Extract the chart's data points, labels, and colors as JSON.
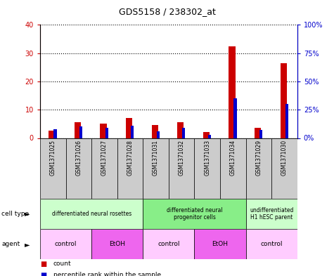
{
  "title": "GDS5158 / 238302_at",
  "samples": [
    "GSM1371025",
    "GSM1371026",
    "GSM1371027",
    "GSM1371028",
    "GSM1371031",
    "GSM1371032",
    "GSM1371033",
    "GSM1371034",
    "GSM1371029",
    "GSM1371030"
  ],
  "count_values": [
    2.5,
    5.5,
    5.0,
    7.0,
    4.5,
    5.5,
    2.0,
    32.5,
    3.5,
    26.5
  ],
  "percentile_values": [
    8,
    10,
    9,
    11,
    6,
    9,
    3,
    35,
    7,
    30
  ],
  "ylim_left": [
    0,
    40
  ],
  "ylim_right": [
    0,
    100
  ],
  "yticks_left": [
    0,
    10,
    20,
    30,
    40
  ],
  "yticks_right": [
    0,
    25,
    50,
    75,
    100
  ],
  "yticklabels_left": [
    "0",
    "10",
    "20",
    "30",
    "40"
  ],
  "yticklabels_right": [
    "0%",
    "25%",
    "50%",
    "75%",
    "100%"
  ],
  "bar_width": 0.25,
  "bar_color_red": "#cc0000",
  "bar_color_blue": "#0000cc",
  "cell_type_groups": [
    {
      "label": "differentiated neural rosettes",
      "start": 0,
      "end": 3,
      "color": "#ccffcc"
    },
    {
      "label": "differentiated neural\nprogenitor cells",
      "start": 4,
      "end": 7,
      "color": "#88ee88"
    },
    {
      "label": "undifferentiated\nH1 hESC parent",
      "start": 8,
      "end": 9,
      "color": "#ccffcc"
    }
  ],
  "agent_groups": [
    {
      "label": "control",
      "start": 0,
      "end": 1,
      "color": "#ffccff"
    },
    {
      "label": "EtOH",
      "start": 2,
      "end": 3,
      "color": "#ee66ee"
    },
    {
      "label": "control",
      "start": 4,
      "end": 5,
      "color": "#ffccff"
    },
    {
      "label": "EtOH",
      "start": 6,
      "end": 7,
      "color": "#ee66ee"
    },
    {
      "label": "control",
      "start": 8,
      "end": 9,
      "color": "#ffccff"
    }
  ],
  "legend_count_label": "count",
  "legend_pct_label": "percentile rank within the sample",
  "xlabel_cell_type": "cell type",
  "xlabel_agent": "agent",
  "axis_color_left": "#cc0000",
  "axis_color_right": "#0000cc",
  "bg_color_sample_row": "#cccccc",
  "fig_width": 4.75,
  "fig_height": 3.93,
  "dpi": 100
}
